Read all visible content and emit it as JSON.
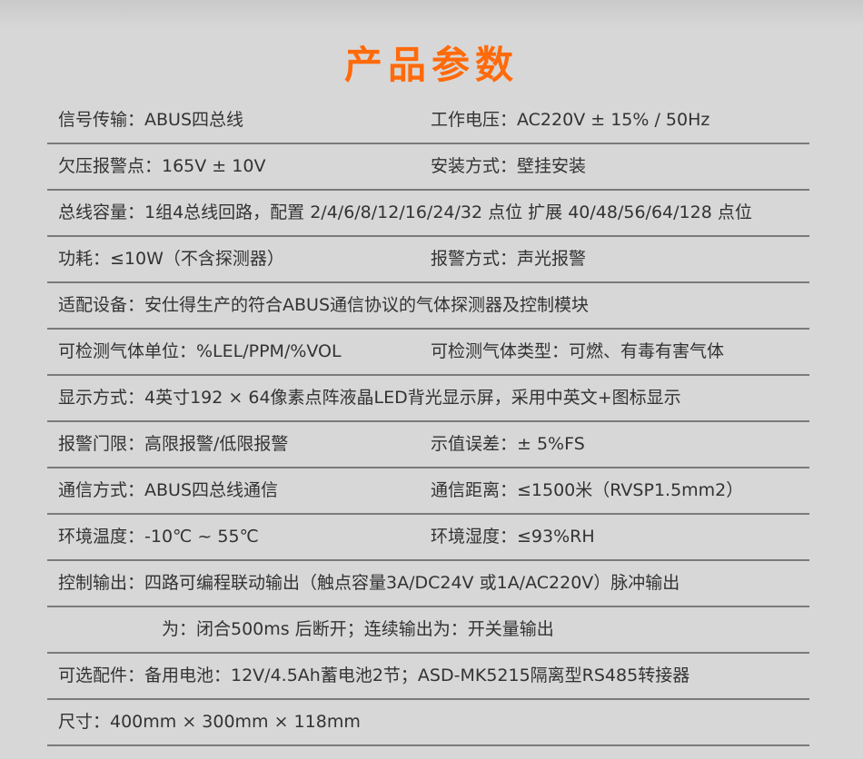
{
  "title": "产品参数",
  "rows": [
    {
      "left": "信号传输：ABUS四总线",
      "right": "工作电压：AC220V ± 15% / 50Hz"
    },
    {
      "left": "欠压报警点：165V ± 10V",
      "right": "安装方式：壁挂安装"
    },
    {
      "left": "总线容量：1组4总线回路，配置 2/4/6/8/12/16/24/32 点位 扩展 40/48/56/64/128 点位"
    },
    {
      "left": "功耗：≤10W（不含探测器）",
      "right": "报警方式：声光报警"
    },
    {
      "left": "适配设备：安仕得生产的符合ABUS通信协议的气体探测器及控制模块"
    },
    {
      "left": "可检测气体单位：%LEL/PPM/%VOL",
      "right": "可检测气体类型：可燃、有毒有害气体"
    },
    {
      "left": "显示方式：4英寸192 × 64像素点阵液晶LED背光显示屏，采用中英文+图标显示"
    },
    {
      "left": "报警门限：高限报警/低限报警",
      "right": "示值误差：± 5%FS"
    },
    {
      "left": "通信方式：ABUS四总线通信",
      "right": "通信距离：≤1500米（RVSP1.5mm2）"
    },
    {
      "left": "环境温度：-10℃ ~ 55℃",
      "right": "环境湿度：≤93%RH"
    },
    {
      "left": "控制输出：四路可编程联动输出（触点容量3A/DC24V 或1A/AC220V）脉冲输出"
    },
    {
      "left": "为：闭合500ms 后断开；连续输出为：开关量输出",
      "indent": true
    },
    {
      "left": "可选配件：备用电池：12V/4.5Ah蓄电池2节；ASD-MK5215隔离型RS485转接器"
    },
    {
      "left": "尺寸：400mm × 300mm × 118mm"
    }
  ],
  "colors": {
    "title": "#ff6a0a",
    "text": "#333333",
    "divider": "#7a7a7a",
    "background": "#d7d7d7"
  }
}
